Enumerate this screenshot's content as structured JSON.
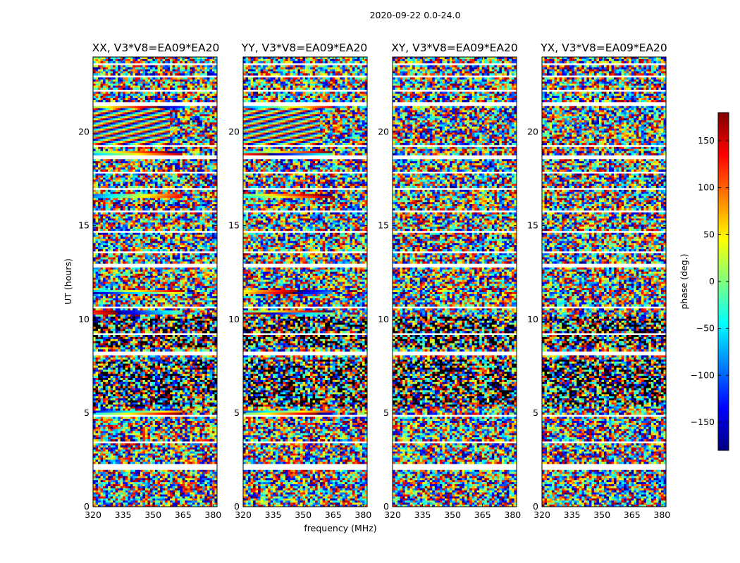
{
  "chart_data": {
    "type": "heatmap",
    "suptitle": "2020-09-22 0.0-24.0",
    "panels": [
      {
        "title": "XX, V3*V8=EA09*EA20",
        "pol": "XX",
        "coherent": true
      },
      {
        "title": "YY, V3*V8=EA09*EA20",
        "pol": "YY",
        "coherent": true
      },
      {
        "title": "XY, V3*V8=EA09*EA20",
        "pol": "XY",
        "coherent": false
      },
      {
        "title": "YX, V3*V8=EA09*EA20",
        "pol": "YX",
        "coherent": false
      }
    ],
    "xlabel": "frequency (MHz)",
    "ylabel": "UT (hours)",
    "xlim": [
      320,
      382
    ],
    "ylim": [
      0,
      24
    ],
    "xticks": [
      320,
      335,
      350,
      365,
      380
    ],
    "xtick_labels": [
      "320",
      "335",
      "350",
      "365",
      "380"
    ],
    "yticks": [
      0,
      5,
      10,
      15,
      20
    ],
    "ytick_labels": [
      "0",
      "5",
      "10",
      "15",
      "20"
    ],
    "colorbar": {
      "label": "phase (deg.)",
      "range": [
        -180,
        180
      ],
      "ticks": [
        -150,
        -100,
        -50,
        0,
        50,
        100,
        150
      ],
      "tick_labels": [
        "−150",
        "−100",
        "−50",
        "0",
        "50",
        "100",
        "150"
      ],
      "colormap": "jet",
      "colors": [
        "#00007f",
        "#0000ff",
        "#007fff",
        "#00ffff",
        "#7fff7f",
        "#ffff00",
        "#ff7f00",
        "#ff0000",
        "#7f0000"
      ]
    },
    "flagged_gaps_hours": [
      [
        2.0,
        2.25
      ],
      [
        3.4,
        3.5
      ],
      [
        4.8,
        4.9
      ],
      [
        8.1,
        8.3
      ],
      [
        9.2,
        9.3
      ],
      [
        10.6,
        10.7
      ],
      [
        12.8,
        12.95
      ],
      [
        13.5,
        13.6
      ],
      [
        14.6,
        14.7
      ],
      [
        15.7,
        15.8
      ],
      [
        16.9,
        17.05
      ],
      [
        17.8,
        17.9
      ],
      [
        18.6,
        18.75
      ],
      [
        19.2,
        19.3
      ],
      [
        21.4,
        21.6
      ],
      [
        22.2,
        22.3
      ],
      [
        22.9,
        23.0
      ],
      [
        23.6,
        23.7
      ]
    ],
    "dark_band_hours": [
      [
        5.3,
        7.9
      ],
      [
        8.5,
        10.2
      ]
    ],
    "coherent_band_hours": [
      {
        "hours": [
          19.2,
          21.3
        ],
        "type": "fringe"
      },
      {
        "hours": [
          21.3,
          21.6
        ],
        "type": "strip"
      },
      {
        "hours": [
          18.75,
          19.0
        ],
        "type": "strip"
      },
      {
        "hours": [
          16.45,
          16.7
        ],
        "type": "strip"
      },
      {
        "hours": [
          10.25,
          10.5
        ],
        "type": "strip"
      },
      {
        "hours": [
          11.3,
          11.55
        ],
        "type": "strip"
      },
      {
        "hours": [
          4.95,
          5.1
        ],
        "type": "strip"
      }
    ]
  }
}
